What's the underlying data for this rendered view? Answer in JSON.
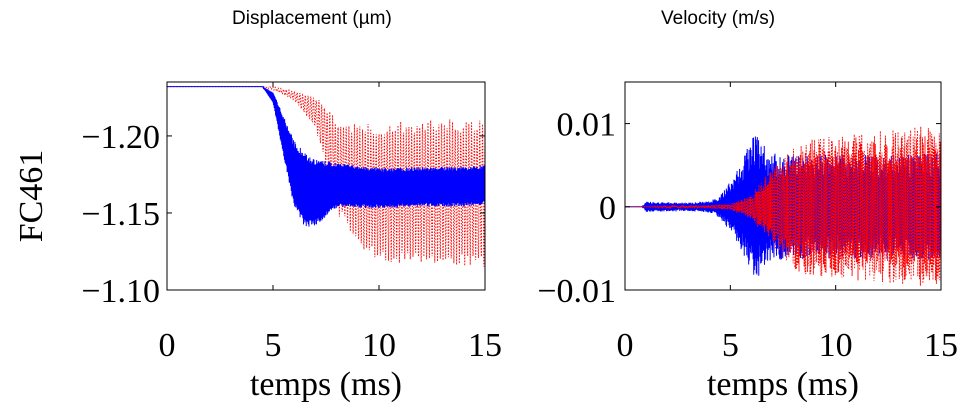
{
  "chart_data": [
    {
      "type": "line",
      "title": "Displacement (µm)",
      "ylabel": "FC461",
      "xlabel": "temps (ms)",
      "xlim": [
        0,
        15
      ],
      "ylim": [
        -1.1,
        -1.235
      ],
      "y_reversed": true,
      "x_ticks": [
        "0",
        "5",
        "10",
        "15"
      ],
      "y_ticks": [
        "−1.20",
        "−1.15",
        "−1.10"
      ],
      "series": [
        {
          "color": "#0000ff",
          "style": "solid",
          "x": [
            0,
            4.5,
            5,
            5.5,
            6,
            6.5,
            7,
            8,
            10,
            12,
            14,
            15
          ],
          "y_center": [
            -1.232,
            -1.232,
            -1.225,
            -1.2,
            -1.175,
            -1.165,
            -1.163,
            -1.168,
            -1.166,
            -1.167,
            -1.167,
            -1.168
          ],
          "y_halfwidth": [
            0,
            0,
            0.004,
            0.015,
            0.025,
            0.028,
            0.025,
            0.017,
            0.015,
            0.015,
            0.015,
            0.015
          ]
        },
        {
          "color": "#ff0000",
          "style": "dotted",
          "x": [
            0,
            4.5,
            5,
            6,
            7,
            7.5,
            8,
            9,
            10,
            12,
            15
          ],
          "y_center": [
            -1.232,
            -1.232,
            -1.231,
            -1.226,
            -1.215,
            -1.2,
            -1.18,
            -1.168,
            -1.163,
            -1.164,
            -1.163
          ],
          "y_halfwidth": [
            0,
            0,
            0.001,
            0.003,
            0.01,
            0.02,
            0.03,
            0.04,
            0.045,
            0.047,
            0.048
          ]
        }
      ]
    },
    {
      "type": "line",
      "title": "Velocity (m/s)",
      "xlabel": "temps (ms)",
      "xlim": [
        0,
        15
      ],
      "ylim": [
        -0.01,
        0.015
      ],
      "x_ticks": [
        "0",
        "5",
        "10",
        "15"
      ],
      "y_ticks": [
        "0.01",
        "0",
        "−0.01"
      ],
      "y_tick_values": [
        0.01,
        0,
        -0.01
      ],
      "series": [
        {
          "color": "#0000ff",
          "style": "solid",
          "x": [
            0,
            0.8,
            1,
            3,
            4,
            4.5,
            5,
            5.5,
            6,
            6.3,
            6.8,
            8,
            10,
            12,
            15
          ],
          "y_amplitude": [
            0,
            0,
            0.0007,
            0.0006,
            0.0008,
            0.0015,
            0.0035,
            0.006,
            0.0095,
            0.01,
            0.0075,
            0.0072,
            0.0072,
            0.0072,
            0.0075
          ]
        },
        {
          "color": "#ff0000",
          "style": "dotted",
          "x": [
            0,
            4,
            5,
            6,
            7,
            8,
            9,
            10,
            11,
            12,
            13,
            14,
            15
          ],
          "y_amplitude": [
            0,
            0.0002,
            0.0004,
            0.0015,
            0.005,
            0.008,
            0.0088,
            0.0088,
            0.0092,
            0.0095,
            0.0098,
            0.01,
            0.01
          ]
        }
      ]
    }
  ]
}
